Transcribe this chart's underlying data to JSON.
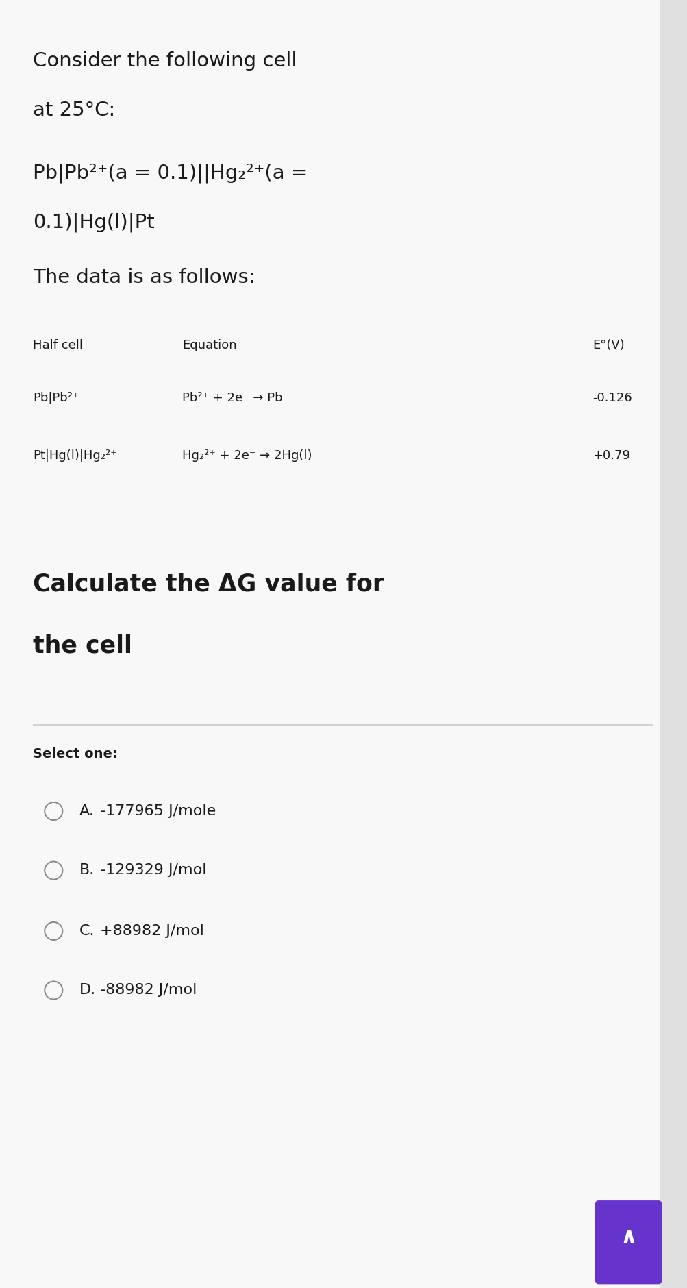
{
  "bg_color": "#f8f8f8",
  "text_color": "#1a1a1a",
  "separator_color": "#cccccc",
  "circle_color": "#888888",
  "purple_color": "#6633cc",
  "arrow_color": "#ffffff",
  "scrollbar_color": "#e0e0e0",
  "title_line1": "Consider the following cell",
  "title_line2": "at 25°C:",
  "cell_line1": "Pb|Pb²⁺(a = 0.1)||Hg₂²⁺(a =",
  "cell_line2": "0.1)|Hg(l)|Pt",
  "data_intro": "The data is as follows:",
  "col_header": [
    "Half cell",
    "Equation",
    "E°(V)"
  ],
  "row1_col1": "Pb|Pb²⁺",
  "row1_col2": "Pb²⁺ + 2e⁻ → Pb",
  "row1_col3": "-0.126",
  "row2_col1": "Pt|Hg(l)|Hg₂²⁺",
  "row2_col2": "Hg₂²⁺ + 2e⁻ → 2Hg(l)",
  "row2_col3": "+0.79",
  "question_line1": "Calculate the ΔG value for",
  "question_line2": "the cell",
  "select_label": "Select one:",
  "options": [
    [
      "A.",
      "-177965 J/mole"
    ],
    [
      "B.",
      "-129329 J/mol"
    ],
    [
      "C.",
      "+88982 J/mol"
    ],
    [
      "D.",
      "-88982 J/mol"
    ]
  ],
  "title_fontsize": 21,
  "cell_fontsize": 21,
  "intro_fontsize": 21,
  "table_header_fontsize": 13,
  "table_row_fontsize": 13,
  "question_fontsize": 25,
  "select_fontsize": 14,
  "option_fontsize": 16
}
